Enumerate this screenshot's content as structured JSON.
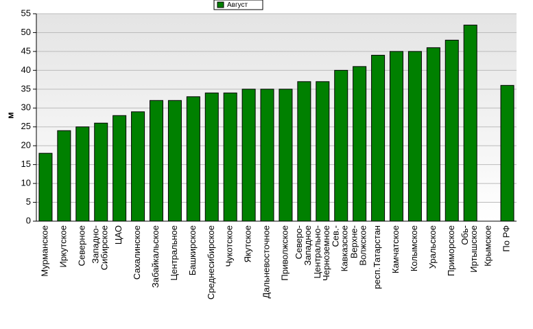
{
  "chart_data": {
    "type": "bar",
    "y_label": "м",
    "categories": [
      [
        "Мурманское"
      ],
      [
        "Иркутское"
      ],
      [
        "Северное"
      ],
      [
        "Западно-",
        "Сибирское"
      ],
      [
        "ЦАО"
      ],
      [
        "Сахалинское"
      ],
      [
        "Забайкальское"
      ],
      [
        "Центральное"
      ],
      [
        "Башкирское"
      ],
      [
        "Среднесибирское"
      ],
      [
        "Чукотское"
      ],
      [
        "Якутское"
      ],
      [
        "Дальневосточное"
      ],
      [
        "Приволжское"
      ],
      [
        "Северо-",
        "Западное"
      ],
      [
        "Центрально-",
        "Черноземное"
      ],
      [
        "Сев.-",
        "Кавказское"
      ],
      [
        "Верхне-",
        "Волжское"
      ],
      [
        "респ.Татарстан"
      ],
      [
        "Камчатское"
      ],
      [
        "Колымское"
      ],
      [
        "Уральское"
      ],
      [
        "Приморское"
      ],
      [
        "Обь-",
        "Иртышское"
      ],
      [
        "Крымское"
      ],
      [
        "По РФ"
      ]
    ],
    "series": [
      {
        "name": "Август",
        "color": "#008000",
        "values": [
          18,
          24,
          25,
          26,
          28,
          29,
          32,
          32,
          33,
          34,
          34,
          35,
          35,
          35,
          37,
          37,
          40,
          41,
          44,
          45,
          45,
          46,
          48,
          52,
          null,
          36
        ]
      }
    ],
    "ylim": [
      0,
      55
    ],
    "yticks": [
      0,
      5,
      10,
      15,
      20,
      25,
      30,
      35,
      40,
      45,
      50,
      55
    ],
    "grid": true,
    "legend": "top"
  }
}
